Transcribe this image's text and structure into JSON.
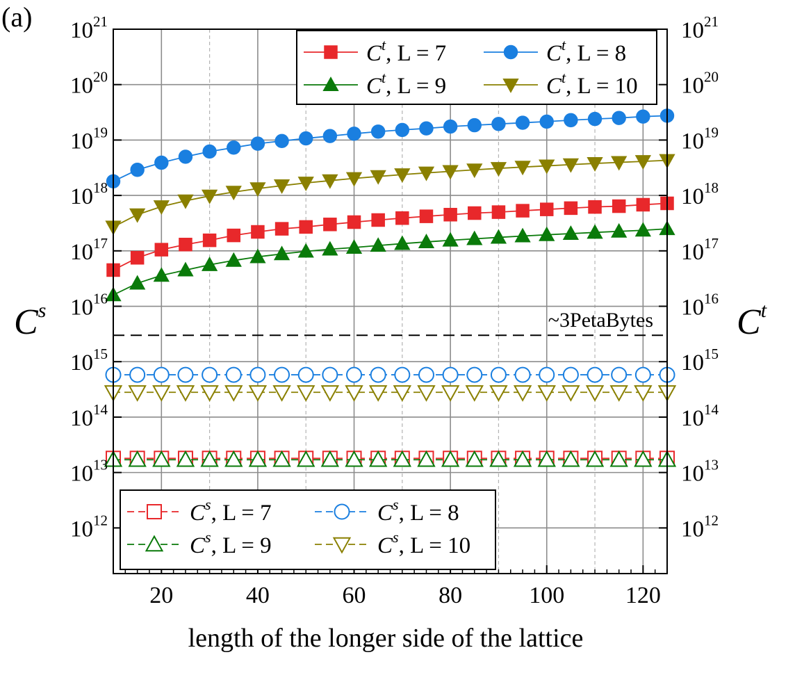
{
  "chart_data": {
    "type": "line",
    "panel_label": "(a)",
    "xlabel": "length of the longer side of the lattice",
    "ylabel_left": "C",
    "ylabel_left_sup": "s",
    "ylabel_right": "C",
    "ylabel_right_sup": "t",
    "y_scale": "log",
    "xlim": [
      10,
      125
    ],
    "ylim": [
      150000000000.0,
      1e+21
    ],
    "x_ticks": [
      20,
      40,
      60,
      80,
      100,
      120
    ],
    "x_tick_labels": [
      "20",
      "40",
      "60",
      "80",
      "100",
      "120"
    ],
    "y_ticks": [
      1000000000000.0,
      10000000000000.0,
      100000000000000.0,
      1000000000000000.0,
      1e+16,
      1e+17,
      1e+18,
      1e+19,
      1e+20,
      1e+21
    ],
    "y_tick_bases": [
      "10",
      "10",
      "10",
      "10",
      "10",
      "10",
      "10",
      "10",
      "10",
      "10"
    ],
    "y_tick_exponents": [
      "12",
      "13",
      "14",
      "15",
      "16",
      "17",
      "18",
      "19",
      "20",
      "21"
    ],
    "grid": true,
    "annotation": {
      "text": "~3PetaBytes",
      "y": 3000000000000000.0
    },
    "x": [
      10,
      15,
      20,
      25,
      30,
      35,
      40,
      45,
      50,
      55,
      60,
      65,
      70,
      75,
      80,
      85,
      90,
      95,
      100,
      105,
      110,
      115,
      120,
      125
    ],
    "series": [
      {
        "group": "t",
        "label_sym": "C",
        "label_sup": "t",
        "label_rest": ", L = 7",
        "color": "#e8282b",
        "marker": "square",
        "filled": true,
        "line": "solid",
        "values": [
          4.5e+16,
          7.5e+16,
          1.05e+17,
          1.3e+17,
          1.55e+17,
          1.9e+17,
          2.2e+17,
          2.5e+17,
          2.7e+17,
          3e+17,
          3.3e+17,
          3.6e+17,
          3.9e+17,
          4.2e+17,
          4.5e+17,
          4.8e+17,
          5e+17,
          5.3e+17,
          5.6e+17,
          5.9e+17,
          6.2e+17,
          6.4e+17,
          6.8e+17,
          7.2e+17
        ]
      },
      {
        "group": "t",
        "label_sym": "C",
        "label_sup": "t",
        "label_rest": ", L = 8",
        "color": "#1a7fe0",
        "marker": "circle",
        "filled": true,
        "line": "solid",
        "values": [
          1.8e+18,
          2.9e+18,
          3.9e+18,
          5e+18,
          6.2e+18,
          7.3e+18,
          8.6e+18,
          9.6e+18,
          1.07e+19,
          1.18e+19,
          1.3e+19,
          1.42e+19,
          1.52e+19,
          1.62e+19,
          1.75e+19,
          1.85e+19,
          1.95e+19,
          2.05e+19,
          2.15e+19,
          2.28e+19,
          2.4e+19,
          2.5e+19,
          2.65e+19,
          2.75e+19
        ]
      },
      {
        "group": "t",
        "label_sym": "C",
        "label_sup": "t",
        "label_rest": ", L = 9",
        "color": "#0a7a0a",
        "marker": "triangle-up",
        "filled": true,
        "line": "solid",
        "values": [
          1.6e+16,
          2.6e+16,
          3.6e+16,
          4.5e+16,
          5.6e+16,
          6.7e+16,
          7.8e+16,
          8.8e+16,
          9.8e+16,
          1.07e+17,
          1.15e+17,
          1.25e+17,
          1.35e+17,
          1.45e+17,
          1.55e+17,
          1.65e+17,
          1.75e+17,
          1.85e+17,
          1.95e+17,
          2.05e+17,
          2.15e+17,
          2.25e+17,
          2.35e+17,
          2.5e+17
        ]
      },
      {
        "group": "t",
        "label_sym": "C",
        "label_sup": "t",
        "label_rest": ", L = 10",
        "color": "#8a8000",
        "marker": "triangle-down",
        "filled": true,
        "line": "solid",
        "values": [
          2.7e+17,
          4.5e+17,
          6.3e+17,
          8e+17,
          9.8e+17,
          1.15e+18,
          1.33e+18,
          1.5e+18,
          1.68e+18,
          1.85e+18,
          2.03e+18,
          2.2e+18,
          2.38e+18,
          2.55e+18,
          2.72e+18,
          2.9e+18,
          3.08e+18,
          3.25e+18,
          3.42e+18,
          3.6e+18,
          3.78e+18,
          3.95e+18,
          4.12e+18,
          4.3e+18
        ]
      },
      {
        "group": "s",
        "label_sym": "C",
        "label_sup": "s",
        "label_rest": ", L = 7",
        "color": "#e8282b",
        "marker": "square",
        "filled": false,
        "line": "dashed",
        "values": [
          18000000000000.0,
          18000000000000.0,
          18000000000000.0,
          18000000000000.0,
          18000000000000.0,
          18000000000000.0,
          18000000000000.0,
          18000000000000.0,
          18000000000000.0,
          18000000000000.0,
          18000000000000.0,
          18000000000000.0,
          18000000000000.0,
          18000000000000.0,
          18000000000000.0,
          18000000000000.0,
          18000000000000.0,
          18000000000000.0,
          18000000000000.0,
          18000000000000.0,
          18000000000000.0,
          18000000000000.0,
          18000000000000.0,
          18000000000000.0
        ]
      },
      {
        "group": "s",
        "label_sym": "C",
        "label_sup": "s",
        "label_rest": ", L = 8",
        "color": "#1a7fe0",
        "marker": "circle",
        "filled": false,
        "line": "dashed",
        "values": [
          580000000000000.0,
          580000000000000.0,
          580000000000000.0,
          580000000000000.0,
          580000000000000.0,
          580000000000000.0,
          580000000000000.0,
          580000000000000.0,
          580000000000000.0,
          580000000000000.0,
          580000000000000.0,
          580000000000000.0,
          580000000000000.0,
          580000000000000.0,
          580000000000000.0,
          580000000000000.0,
          580000000000000.0,
          580000000000000.0,
          580000000000000.0,
          580000000000000.0,
          580000000000000.0,
          580000000000000.0,
          580000000000000.0,
          580000000000000.0
        ]
      },
      {
        "group": "s",
        "label_sym": "C",
        "label_sup": "s",
        "label_rest": ", L = 9",
        "color": "#0a7a0a",
        "marker": "triangle-up",
        "filled": false,
        "line": "dashed",
        "values": [
          17000000000000.0,
          17000000000000.0,
          17000000000000.0,
          17000000000000.0,
          17000000000000.0,
          17000000000000.0,
          17000000000000.0,
          17000000000000.0,
          17000000000000.0,
          17000000000000.0,
          17000000000000.0,
          17000000000000.0,
          17000000000000.0,
          17000000000000.0,
          17000000000000.0,
          17000000000000.0,
          17000000000000.0,
          17000000000000.0,
          17000000000000.0,
          17000000000000.0,
          17000000000000.0,
          17000000000000.0,
          17000000000000.0,
          17000000000000.0
        ]
      },
      {
        "group": "s",
        "label_sym": "C",
        "label_sup": "s",
        "label_rest": ", L = 10",
        "color": "#8a8000",
        "marker": "triangle-down",
        "filled": false,
        "line": "dashed",
        "values": [
          280000000000000.0,
          280000000000000.0,
          280000000000000.0,
          280000000000000.0,
          280000000000000.0,
          280000000000000.0,
          280000000000000.0,
          280000000000000.0,
          280000000000000.0,
          280000000000000.0,
          280000000000000.0,
          280000000000000.0,
          280000000000000.0,
          280000000000000.0,
          280000000000000.0,
          280000000000000.0,
          280000000000000.0,
          280000000000000.0,
          280000000000000.0,
          280000000000000.0,
          280000000000000.0,
          280000000000000.0,
          280000000000000.0,
          280000000000000.0
        ]
      }
    ]
  }
}
